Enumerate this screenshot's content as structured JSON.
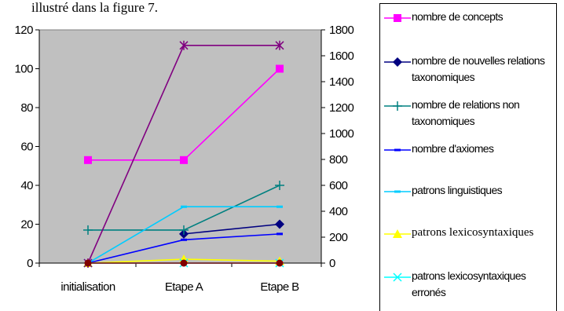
{
  "caption": "illustré dans la figure 7.",
  "chart_data": {
    "type": "line",
    "categories": [
      "initialisation",
      "Etape A",
      "Etape B"
    ],
    "y_left": {
      "range": [
        0,
        120
      ],
      "ticks": [
        "0",
        "20",
        "40",
        "60",
        "80",
        "100",
        "120"
      ]
    },
    "y_right": {
      "range": [
        0,
        1800
      ],
      "ticks": [
        "0",
        "200",
        "400",
        "600",
        "800",
        "1000",
        "1200",
        "1400",
        "1600",
        "1800"
      ]
    },
    "plot_background": "#c0c0c0",
    "grid": false,
    "legend_position": "right",
    "series": [
      {
        "name": "nombre de concepts",
        "color": "#ff00ff",
        "marker": "square",
        "axis": "left",
        "values": [
          53,
          53,
          100
        ]
      },
      {
        "name": "nombre de nouvelles relations taxonomiques",
        "color": "#000080",
        "marker": "diamond",
        "axis": "left",
        "values": [
          null,
          15,
          20
        ]
      },
      {
        "name": "nombre de relations  non taxonomiques",
        "color": "#008080",
        "marker": "plus",
        "axis": "left",
        "values": [
          17,
          17,
          40
        ]
      },
      {
        "name": "nombre d'axiomes",
        "color": "#0000ff",
        "marker": "dash",
        "axis": "left",
        "values": [
          0,
          12,
          15
        ]
      },
      {
        "name": "patrons linguistiques",
        "color": "#00ccff",
        "marker": "dash",
        "axis": "left",
        "values": [
          0,
          29,
          29
        ]
      },
      {
        "name": "patrons lexicosyntaxiques",
        "color": "#ffff00",
        "marker": "triangle",
        "axis": "left",
        "values": [
          0,
          2,
          1
        ]
      },
      {
        "name": "patrons lexicosyntaxiques erronés",
        "color": "#00ffff",
        "marker": "x",
        "axis": "left",
        "values": [
          0,
          0,
          0
        ]
      },
      {
        "name": "",
        "color": "#800080",
        "marker": "asterisk",
        "axis": "right",
        "values": [
          0,
          1680,
          1680
        ]
      },
      {
        "name": "",
        "color": "#800000",
        "marker": "circle",
        "axis": "left",
        "values": [
          0,
          0,
          0
        ]
      }
    ]
  }
}
